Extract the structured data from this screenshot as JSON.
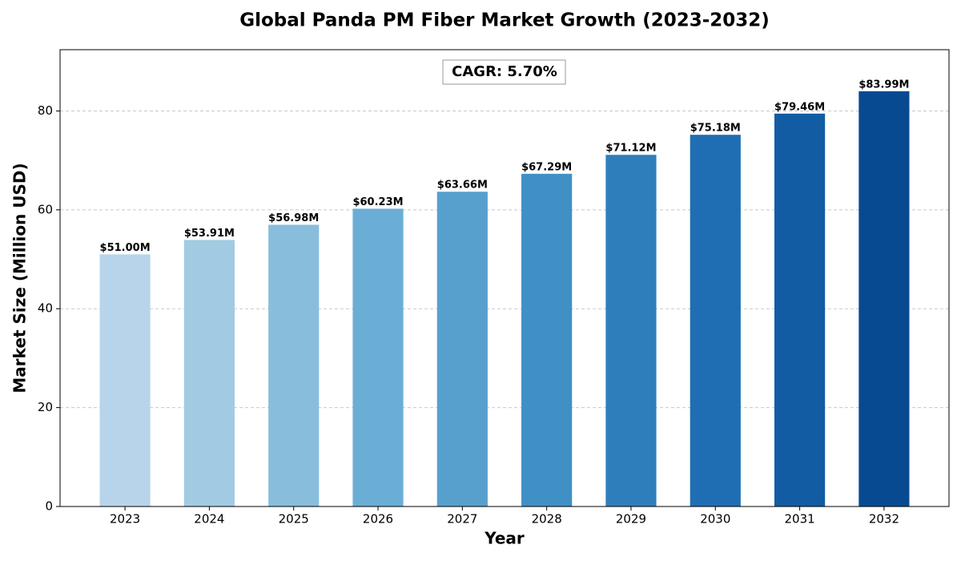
{
  "chart_data": {
    "type": "bar",
    "title": "Global Panda PM Fiber Market Growth (2023-2032)",
    "x_label": "Year",
    "y_label": "Market Size (Million USD)",
    "annotation": "CAGR: 5.70%",
    "categories": [
      "2023",
      "2024",
      "2025",
      "2026",
      "2027",
      "2028",
      "2029",
      "2030",
      "2031",
      "2032"
    ],
    "values": [
      51.0,
      53.91,
      56.98,
      60.23,
      63.66,
      67.29,
      71.12,
      75.18,
      79.46,
      83.99
    ],
    "value_labels": [
      "$51.00M",
      "$53.91M",
      "$56.98M",
      "$60.23M",
      "$63.66M",
      "$67.29M",
      "$71.12M",
      "$75.18M",
      "$79.46M",
      "$83.99M"
    ],
    "colors": [
      "#b7d4ea",
      "#a1cbe2",
      "#88bedc",
      "#6aaed6",
      "#57a0ce",
      "#4090c5",
      "#2f7ebc",
      "#1f6eb3",
      "#125ca4",
      "#084a91"
    ],
    "ylim": [
      0,
      92.39
    ],
    "yticks": [
      0,
      20,
      40,
      60,
      80
    ],
    "grid": true
  }
}
